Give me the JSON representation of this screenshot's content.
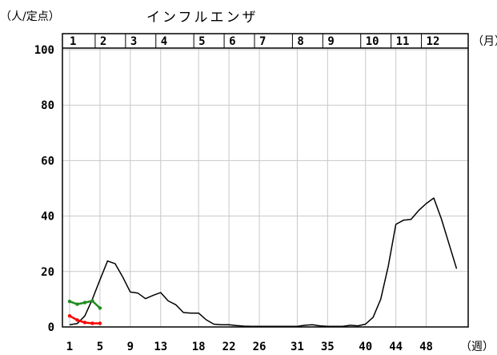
{
  "chart_data": {
    "type": "line",
    "title": "インフルエンザ",
    "ylabel": "（人/定点）",
    "xlabel": "（週）",
    "month_unit": "（月）",
    "ylim": [
      0,
      100
    ],
    "yticks": [
      0,
      20,
      40,
      60,
      80,
      100
    ],
    "xlim": [
      1,
      53
    ],
    "xticks": [
      1,
      5,
      9,
      13,
      18,
      22,
      26,
      31,
      35,
      40,
      44,
      48
    ],
    "months": [
      {
        "label": "1",
        "start_week": 1
      },
      {
        "label": "2",
        "start_week": 5
      },
      {
        "label": "3",
        "start_week": 9
      },
      {
        "label": "4",
        "start_week": 13
      },
      {
        "label": "5",
        "start_week": 18
      },
      {
        "label": "6",
        "start_week": 22
      },
      {
        "label": "7",
        "start_week": 26
      },
      {
        "label": "8",
        "start_week": 31
      },
      {
        "label": "9",
        "start_week": 35
      },
      {
        "label": "10",
        "start_week": 40
      },
      {
        "label": "11",
        "start_week": 44
      },
      {
        "label": "12",
        "start_week": 48
      }
    ],
    "grid": true,
    "series": [
      {
        "color": "#000000",
        "x": [
          1,
          2,
          3,
          4,
          5,
          6,
          7,
          8,
          9,
          10,
          11,
          12,
          13,
          14,
          15,
          16,
          17,
          18,
          19,
          20,
          21,
          22,
          23,
          24,
          25,
          26,
          27,
          28,
          29,
          30,
          31,
          32,
          33,
          34,
          35,
          36,
          37,
          38,
          39,
          40,
          41,
          42,
          43,
          44,
          45,
          46,
          47,
          48,
          49,
          50,
          51,
          52,
          53
        ],
        "values": [
          0.8,
          1.2,
          4.0,
          10.0,
          17.0,
          23.8,
          22.8,
          18.0,
          12.6,
          12.2,
          10.2,
          11.4,
          12.4,
          9.4,
          8.0,
          5.2,
          5.0,
          5.0,
          2.6,
          1.0,
          0.8,
          0.8,
          0.5,
          0.3,
          0.2,
          0.2,
          0.2,
          0.2,
          0.2,
          0.2,
          0.2,
          0.6,
          0.8,
          0.4,
          0.2,
          0.2,
          0.2,
          0.6,
          0.4,
          1.0,
          3.5,
          10.0,
          22.0,
          37.0,
          38.5,
          38.8,
          42.0,
          44.5,
          46.5,
          39.0,
          30.0,
          21.0,
          null
        ]
      },
      {
        "color": "#228b22",
        "x": [
          1,
          2,
          3,
          4,
          5
        ],
        "values": [
          9.2,
          8.2,
          8.8,
          9.4,
          6.8
        ]
      },
      {
        "color": "#ff0000",
        "x": [
          1,
          2,
          3,
          4,
          5
        ],
        "values": [
          4.0,
          2.5,
          1.6,
          1.3,
          1.3
        ]
      }
    ]
  }
}
